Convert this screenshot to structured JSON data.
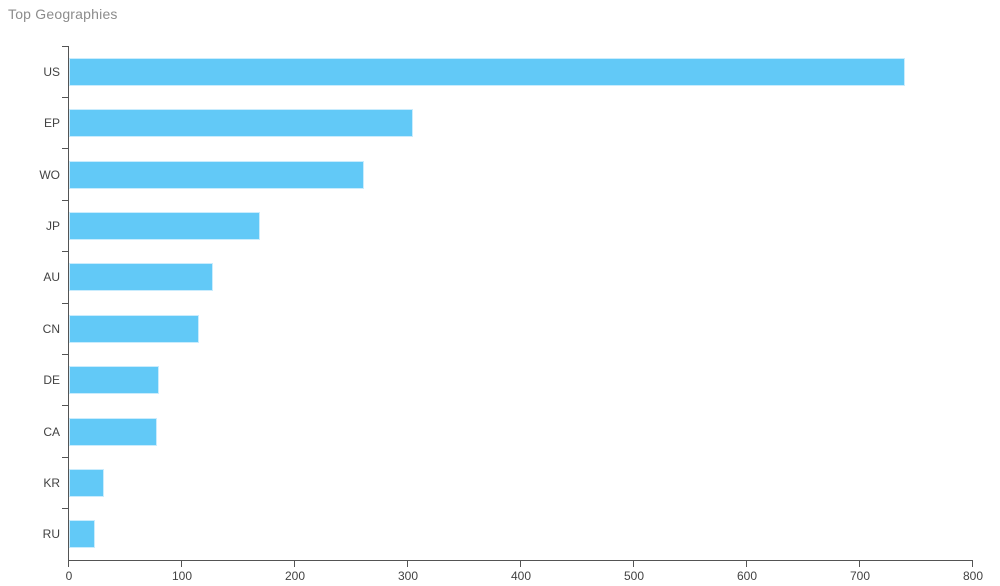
{
  "title": "Top Geographies",
  "chart_data": {
    "type": "bar",
    "orientation": "horizontal",
    "title": "Top Geographies",
    "categories": [
      "US",
      "EP",
      "WO",
      "JP",
      "AU",
      "CN",
      "DE",
      "CA",
      "KR",
      "RU"
    ],
    "values": [
      740,
      304,
      261,
      169,
      127,
      115,
      80,
      78,
      31,
      23
    ],
    "xlabel": "",
    "ylabel": "",
    "xlim": [
      0,
      800
    ],
    "xticks": [
      0,
      100,
      200,
      300,
      400,
      500,
      600,
      700,
      800
    ],
    "grid": false,
    "legend": "none",
    "colors": {
      "bar_fill": "#62C9F7",
      "bar_border": "#C9ECFD",
      "axis": "#545454",
      "tick_label": "#424242",
      "title": "#8C8C8C"
    }
  }
}
